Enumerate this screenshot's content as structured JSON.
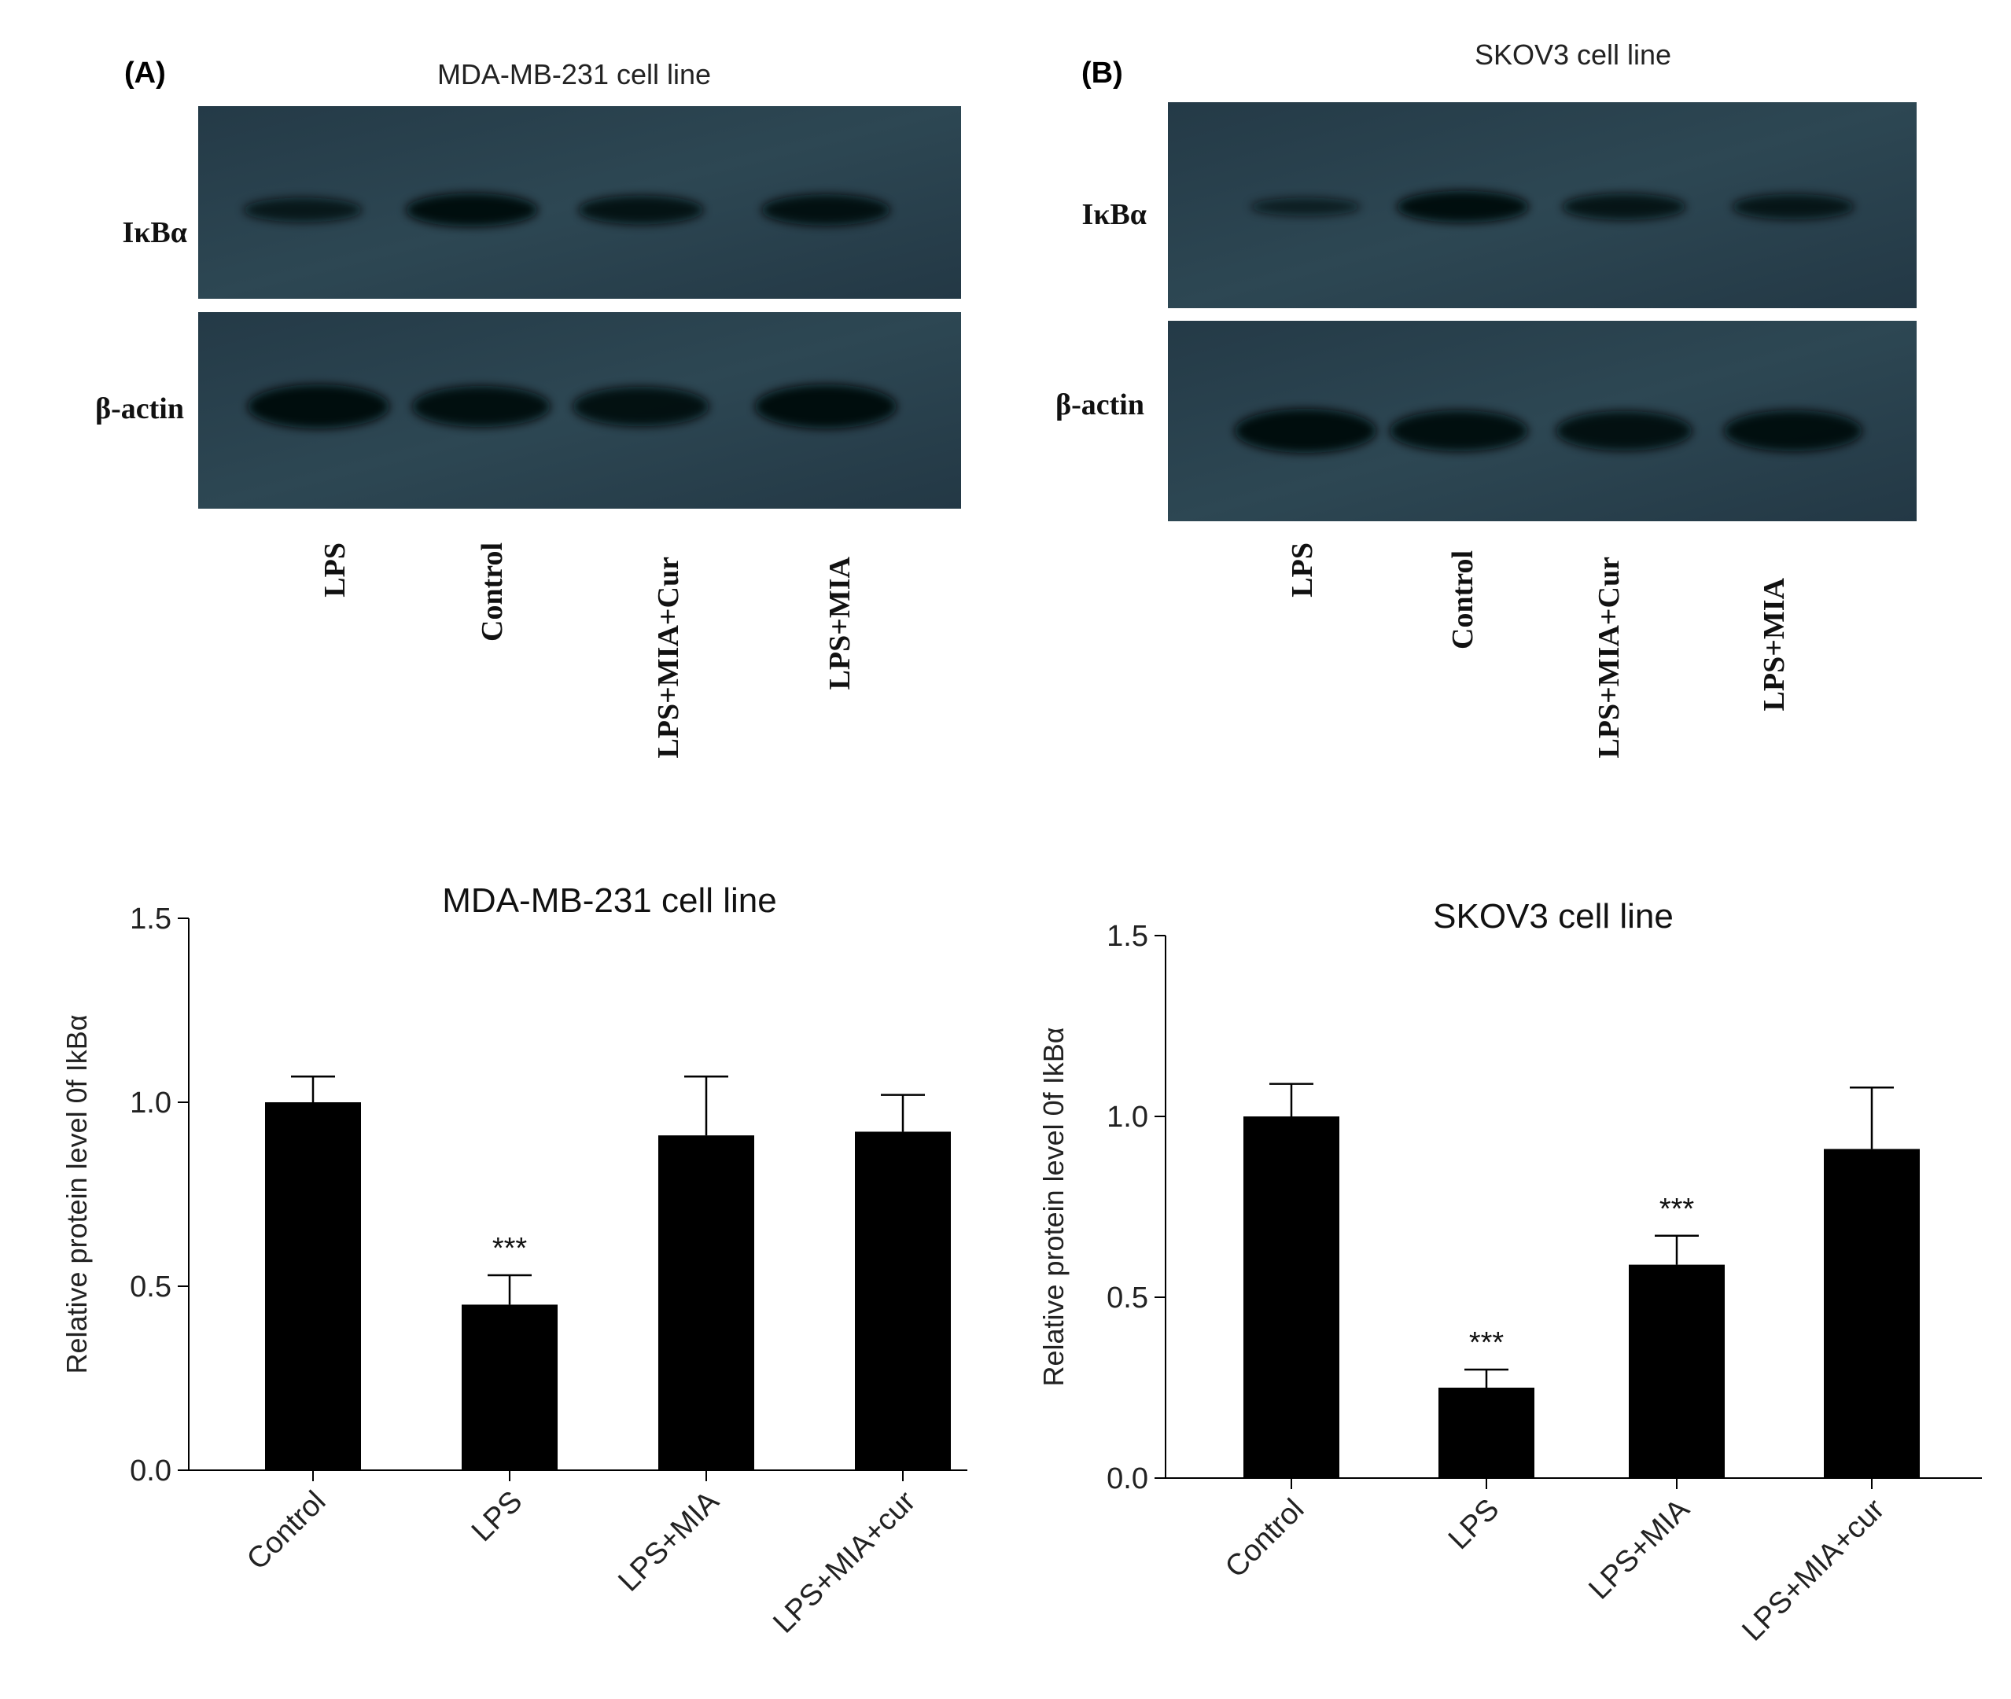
{
  "panels": [
    {
      "letter": "(A)",
      "title": "MDA-MB-231 cell line",
      "row_labels": [
        "IκBα",
        "β-actin"
      ],
      "lane_labels": [
        "LPS",
        "Control",
        "LPS+MIA+Cur",
        "LPS+MIA"
      ],
      "band_intensity": {
        "IkBa": [
          0.55,
          0.95,
          0.75,
          0.85
        ],
        "beta_actin": [
          1.0,
          0.9,
          0.85,
          1.0
        ]
      }
    },
    {
      "letter": "(B)",
      "title": "SKOV3 cell line",
      "row_labels": [
        "IκBα",
        "β-actin"
      ],
      "lane_labels": [
        "LPS",
        "Control",
        "LPS+MIA+Cur",
        "LPS+MIA"
      ],
      "band_intensity": {
        "IkBa": [
          0.3,
          0.95,
          0.7,
          0.65
        ],
        "beta_actin": [
          1.0,
          0.9,
          0.85,
          0.9
        ]
      }
    }
  ],
  "chart_data": [
    {
      "type": "bar",
      "title": "MDA-MB-231 cell line",
      "xlabel": "",
      "ylabel": "Relative protein level 0f IkBα",
      "ylim": [
        0,
        1.5
      ],
      "yticks": [
        0.0,
        0.5,
        1.0,
        1.5
      ],
      "ytick_labels": [
        "0.0",
        "0.5",
        "1.0",
        "1.5"
      ],
      "categories": [
        "Control",
        "LPS",
        "LPS+MIA",
        "LPS+MIA+cur"
      ],
      "values": [
        1.0,
        0.45,
        0.91,
        0.92
      ],
      "errors": [
        0.07,
        0.08,
        0.16,
        0.1
      ],
      "annotations": [
        "",
        "***",
        "",
        ""
      ],
      "bar_color": "#000000"
    },
    {
      "type": "bar",
      "title": "SKOV3 cell line",
      "xlabel": "",
      "ylabel": "Relative protein level 0f IkBα",
      "ylim": [
        0,
        1.5
      ],
      "yticks": [
        0.0,
        0.5,
        1.0,
        1.5
      ],
      "ytick_labels": [
        "0.0",
        "0.5",
        "1.0",
        "1.5"
      ],
      "categories": [
        "Control",
        "LPS",
        "LPS+MIA",
        "LPS+MIA+cur"
      ],
      "values": [
        1.0,
        0.25,
        0.59,
        0.91
      ],
      "errors": [
        0.09,
        0.05,
        0.08,
        0.17
      ],
      "annotations": [
        "",
        "***",
        "***",
        ""
      ],
      "bar_color": "#000000"
    }
  ]
}
